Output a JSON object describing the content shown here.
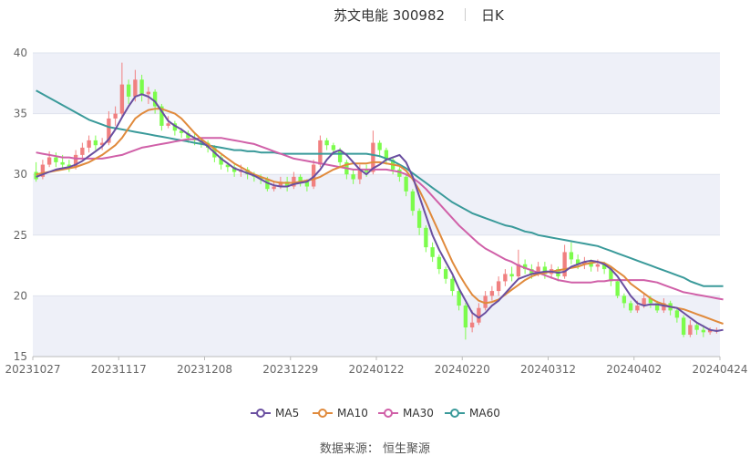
{
  "header": {
    "title": "苏文电能 300982",
    "period": "日K"
  },
  "source_text": "数据来源： 恒生聚源",
  "colors": {
    "up": "#f08080",
    "down": "#7cfc4c",
    "MA5": "#6a4fa0",
    "MA10": "#e08a3c",
    "MA30": "#d060a8",
    "MA60": "#3a9a9a",
    "band": "#eef0f8",
    "grid": "#dfe3ee"
  },
  "chart_data": {
    "type": "candlestick",
    "ylim": [
      15,
      40
    ],
    "yticks": [
      "15",
      "20",
      "25",
      "30",
      "35",
      "40"
    ],
    "xticks": [
      "20231027",
      "20231117",
      "20231208",
      "20231229",
      "20240122",
      "20240220",
      "20240312",
      "20240402",
      "20240424"
    ],
    "grid": true,
    "legend_position": "bottom-center",
    "candles": [
      [
        30.2,
        29.6,
        31.0,
        29.4
      ],
      [
        29.8,
        30.8,
        31.2,
        29.6
      ],
      [
        30.8,
        31.4,
        31.9,
        30.6
      ],
      [
        31.4,
        31.0,
        31.8,
        30.6
      ],
      [
        31.0,
        30.8,
        31.6,
        30.4
      ],
      [
        30.8,
        30.6,
        31.2,
        30.2
      ],
      [
        30.6,
        31.6,
        32.0,
        30.4
      ],
      [
        31.6,
        32.2,
        32.6,
        31.2
      ],
      [
        32.2,
        32.8,
        33.2,
        31.8
      ],
      [
        32.8,
        32.4,
        33.2,
        32.0
      ],
      [
        32.4,
        32.6,
        33.0,
        32.0
      ],
      [
        32.6,
        34.6,
        35.2,
        32.4
      ],
      [
        34.6,
        35.0,
        35.6,
        34.0
      ],
      [
        35.0,
        37.4,
        39.2,
        34.6
      ],
      [
        37.4,
        36.4,
        37.8,
        35.8
      ],
      [
        36.4,
        37.8,
        38.6,
        36.0
      ],
      [
        37.8,
        36.6,
        38.2,
        36.0
      ],
      [
        36.6,
        36.8,
        37.2,
        35.8
      ],
      [
        36.8,
        35.6,
        37.0,
        35.0
      ],
      [
        35.6,
        34.0,
        35.8,
        33.6
      ],
      [
        34.0,
        34.2,
        34.8,
        33.8
      ],
      [
        34.2,
        33.6,
        34.4,
        33.2
      ],
      [
        33.6,
        33.4,
        33.8,
        33.0
      ],
      [
        33.4,
        33.0,
        33.6,
        32.6
      ],
      [
        33.0,
        32.8,
        33.4,
        32.4
      ],
      [
        32.8,
        32.6,
        33.0,
        32.2
      ],
      [
        32.6,
        32.2,
        32.8,
        31.8
      ],
      [
        32.2,
        31.4,
        32.4,
        31.0
      ],
      [
        31.4,
        30.8,
        31.6,
        30.4
      ],
      [
        30.8,
        30.6,
        31.0,
        30.2
      ],
      [
        30.6,
        30.2,
        30.8,
        29.8
      ],
      [
        30.2,
        30.4,
        30.8,
        29.8
      ],
      [
        30.4,
        30.0,
        30.6,
        29.6
      ],
      [
        30.0,
        29.8,
        30.2,
        29.4
      ],
      [
        29.8,
        29.6,
        30.0,
        29.2
      ],
      [
        29.6,
        28.8,
        29.8,
        28.6
      ],
      [
        28.8,
        29.0,
        29.4,
        28.6
      ],
      [
        29.0,
        29.4,
        29.8,
        28.8
      ],
      [
        29.4,
        29.0,
        29.8,
        28.6
      ],
      [
        29.0,
        29.8,
        30.2,
        28.8
      ],
      [
        29.8,
        29.4,
        30.0,
        29.0
      ],
      [
        29.4,
        29.0,
        29.6,
        28.6
      ],
      [
        29.0,
        30.8,
        31.2,
        28.8
      ],
      [
        30.8,
        32.8,
        33.2,
        30.6
      ],
      [
        32.8,
        32.4,
        33.0,
        32.0
      ],
      [
        32.4,
        32.0,
        32.6,
        31.6
      ],
      [
        32.0,
        31.0,
        32.2,
        30.6
      ],
      [
        31.0,
        30.0,
        31.2,
        29.6
      ],
      [
        30.0,
        29.6,
        30.4,
        29.2
      ],
      [
        29.6,
        30.4,
        30.8,
        29.2
      ],
      [
        30.4,
        30.2,
        30.8,
        29.8
      ],
      [
        30.2,
        32.6,
        33.6,
        30.0
      ],
      [
        32.6,
        32.0,
        32.8,
        31.4
      ],
      [
        32.0,
        31.2,
        32.2,
        30.8
      ],
      [
        31.2,
        30.4,
        31.4,
        30.0
      ],
      [
        30.4,
        29.8,
        30.6,
        29.4
      ],
      [
        29.8,
        28.6,
        30.0,
        28.2
      ],
      [
        28.6,
        27.0,
        28.8,
        26.6
      ],
      [
        27.0,
        25.6,
        27.2,
        25.0
      ],
      [
        25.6,
        24.0,
        25.8,
        23.6
      ],
      [
        24.0,
        23.2,
        24.4,
        22.8
      ],
      [
        23.2,
        22.2,
        23.4,
        21.8
      ],
      [
        22.2,
        21.4,
        22.4,
        21.0
      ],
      [
        21.4,
        20.4,
        21.6,
        20.0
      ],
      [
        20.4,
        19.2,
        20.6,
        18.8
      ],
      [
        19.2,
        17.4,
        19.4,
        16.4
      ],
      [
        17.4,
        17.8,
        18.8,
        17.0
      ],
      [
        17.8,
        19.0,
        19.4,
        17.6
      ],
      [
        19.0,
        20.0,
        20.4,
        18.8
      ],
      [
        20.0,
        20.4,
        20.8,
        19.6
      ],
      [
        20.4,
        21.2,
        21.6,
        20.0
      ],
      [
        21.2,
        21.8,
        22.2,
        20.8
      ],
      [
        21.8,
        21.6,
        22.4,
        21.2
      ],
      [
        21.6,
        22.6,
        23.8,
        21.4
      ],
      [
        22.6,
        22.2,
        23.0,
        21.8
      ],
      [
        22.2,
        21.8,
        22.6,
        21.4
      ],
      [
        21.8,
        22.4,
        22.8,
        21.6
      ],
      [
        22.4,
        21.8,
        22.8,
        21.4
      ],
      [
        21.8,
        22.2,
        22.6,
        21.4
      ],
      [
        22.2,
        21.6,
        22.4,
        21.2
      ],
      [
        21.6,
        23.6,
        24.2,
        21.4
      ],
      [
        23.6,
        23.0,
        24.4,
        22.6
      ],
      [
        23.0,
        22.6,
        23.4,
        22.2
      ],
      [
        22.6,
        22.8,
        23.2,
        22.2
      ],
      [
        22.8,
        22.4,
        23.0,
        22.0
      ],
      [
        22.4,
        22.6,
        23.0,
        22.0
      ],
      [
        22.6,
        22.2,
        22.8,
        21.8
      ],
      [
        22.2,
        21.2,
        22.4,
        20.8
      ],
      [
        21.2,
        20.0,
        21.4,
        19.8
      ],
      [
        20.0,
        19.4,
        20.2,
        19.0
      ],
      [
        19.4,
        18.8,
        19.6,
        18.6
      ],
      [
        18.8,
        19.2,
        19.6,
        18.6
      ],
      [
        19.2,
        19.8,
        20.2,
        19.0
      ],
      [
        19.8,
        19.4,
        20.0,
        19.0
      ],
      [
        19.4,
        18.8,
        19.6,
        18.6
      ],
      [
        18.8,
        19.4,
        19.8,
        18.6
      ],
      [
        19.4,
        18.8,
        19.6,
        18.4
      ],
      [
        18.8,
        18.2,
        19.0,
        17.8
      ],
      [
        18.2,
        16.8,
        18.4,
        16.6
      ],
      [
        16.8,
        17.6,
        18.0,
        16.6
      ],
      [
        17.6,
        17.2,
        17.8,
        16.8
      ],
      [
        17.2,
        17.0,
        17.6,
        16.6
      ],
      [
        17.0,
        17.2,
        17.4,
        16.8
      ],
      [
        17.2,
        17.2,
        17.4,
        16.9
      ]
    ],
    "series": [
      {
        "name": "MA5",
        "values": [
          29.8,
          30.0,
          30.2,
          30.4,
          30.5,
          30.6,
          30.8,
          31.1,
          31.5,
          31.9,
          32.3,
          32.9,
          33.7,
          34.7,
          35.6,
          36.4,
          36.6,
          36.4,
          36.0,
          35.2,
          34.4,
          34.0,
          33.7,
          33.3,
          33.0,
          32.7,
          32.3,
          31.8,
          31.3,
          30.9,
          30.5,
          30.3,
          30.1,
          29.9,
          29.6,
          29.3,
          29.1,
          29.0,
          29.0,
          29.2,
          29.3,
          29.4,
          29.8,
          30.4,
          31.2,
          31.8,
          32.0,
          31.6,
          31.0,
          30.4,
          30.0,
          30.5,
          30.8,
          31.2,
          31.4,
          31.6,
          31.0,
          29.8,
          28.2,
          26.6,
          25.0,
          23.8,
          22.8,
          21.8,
          20.6,
          19.6,
          18.6,
          18.2,
          18.6,
          19.2,
          19.6,
          20.2,
          20.8,
          21.4,
          21.6,
          21.8,
          21.9,
          22.0,
          22.0,
          21.9,
          22.0,
          22.4,
          22.6,
          22.8,
          22.9,
          22.8,
          22.6,
          22.2,
          21.6,
          20.8,
          20.0,
          19.4,
          19.2,
          19.3,
          19.3,
          19.2,
          19.1,
          19.0,
          18.6,
          18.2,
          17.8,
          17.5,
          17.2,
          17.1,
          17.2
        ]
      },
      {
        "name": "MA10",
        "values": [
          30.0,
          30.1,
          30.2,
          30.3,
          30.4,
          30.5,
          30.6,
          30.8,
          31.0,
          31.3,
          31.6,
          32.0,
          32.4,
          33.0,
          33.8,
          34.6,
          35.0,
          35.3,
          35.4,
          35.4,
          35.2,
          35.0,
          34.6,
          34.0,
          33.4,
          32.9,
          32.5,
          32.1,
          31.7,
          31.3,
          30.9,
          30.6,
          30.3,
          30.0,
          29.8,
          29.6,
          29.4,
          29.3,
          29.3,
          29.3,
          29.4,
          29.5,
          29.6,
          29.8,
          30.1,
          30.4,
          30.6,
          30.8,
          30.9,
          30.9,
          30.9,
          31.0,
          31.0,
          30.9,
          30.8,
          30.7,
          30.3,
          29.6,
          28.7,
          27.6,
          26.4,
          25.2,
          24.0,
          22.8,
          21.8,
          20.9,
          20.1,
          19.6,
          19.4,
          19.5,
          19.7,
          20.1,
          20.5,
          20.9,
          21.3,
          21.6,
          21.8,
          21.9,
          22.0,
          22.1,
          22.2,
          22.3,
          22.4,
          22.6,
          22.7,
          22.8,
          22.7,
          22.4,
          22.0,
          21.6,
          21.0,
          20.6,
          20.2,
          19.8,
          19.5,
          19.3,
          19.1,
          19.0,
          18.9,
          18.7,
          18.5,
          18.3,
          18.1,
          17.9,
          17.7
        ]
      },
      {
        "name": "MA30",
        "values": [
          31.8,
          31.7,
          31.6,
          31.5,
          31.4,
          31.4,
          31.3,
          31.3,
          31.3,
          31.3,
          31.3,
          31.4,
          31.5,
          31.6,
          31.8,
          32.0,
          32.2,
          32.3,
          32.4,
          32.5,
          32.6,
          32.7,
          32.8,
          32.9,
          32.9,
          33.0,
          33.0,
          33.0,
          33.0,
          32.9,
          32.8,
          32.7,
          32.6,
          32.5,
          32.3,
          32.1,
          31.9,
          31.7,
          31.5,
          31.3,
          31.2,
          31.1,
          31.0,
          30.9,
          30.8,
          30.7,
          30.6,
          30.5,
          30.4,
          30.4,
          30.4,
          30.4,
          30.4,
          30.4,
          30.3,
          30.2,
          30.0,
          29.7,
          29.3,
          28.8,
          28.2,
          27.6,
          27.0,
          26.4,
          25.8,
          25.3,
          24.8,
          24.3,
          23.9,
          23.6,
          23.3,
          23.0,
          22.8,
          22.5,
          22.3,
          22.1,
          21.9,
          21.7,
          21.5,
          21.3,
          21.2,
          21.1,
          21.1,
          21.1,
          21.1,
          21.2,
          21.2,
          21.3,
          21.3,
          21.3,
          21.3,
          21.3,
          21.3,
          21.2,
          21.1,
          20.9,
          20.7,
          20.5,
          20.3,
          20.2,
          20.1,
          20.0,
          19.9,
          19.8,
          19.7
        ]
      },
      {
        "name": "MA60",
        "values": [
          36.9,
          36.6,
          36.3,
          36.0,
          35.7,
          35.4,
          35.1,
          34.8,
          34.5,
          34.3,
          34.1,
          33.9,
          33.8,
          33.7,
          33.6,
          33.5,
          33.4,
          33.3,
          33.2,
          33.1,
          33.0,
          32.9,
          32.8,
          32.7,
          32.6,
          32.5,
          32.4,
          32.3,
          32.2,
          32.1,
          32.0,
          32.0,
          31.9,
          31.9,
          31.8,
          31.8,
          31.8,
          31.7,
          31.7,
          31.7,
          31.7,
          31.7,
          31.7,
          31.7,
          31.7,
          31.7,
          31.7,
          31.7,
          31.7,
          31.7,
          31.7,
          31.6,
          31.5,
          31.3,
          31.1,
          30.8,
          30.5,
          30.1,
          29.7,
          29.3,
          28.9,
          28.5,
          28.1,
          27.7,
          27.4,
          27.1,
          26.8,
          26.6,
          26.4,
          26.2,
          26.0,
          25.8,
          25.7,
          25.5,
          25.3,
          25.2,
          25.0,
          24.9,
          24.8,
          24.7,
          24.6,
          24.5,
          24.4,
          24.3,
          24.2,
          24.1,
          23.9,
          23.7,
          23.5,
          23.3,
          23.1,
          22.9,
          22.7,
          22.5,
          22.3,
          22.1,
          21.9,
          21.7,
          21.5,
          21.2,
          21.0,
          20.8,
          20.8,
          20.8,
          20.8
        ]
      }
    ]
  }
}
